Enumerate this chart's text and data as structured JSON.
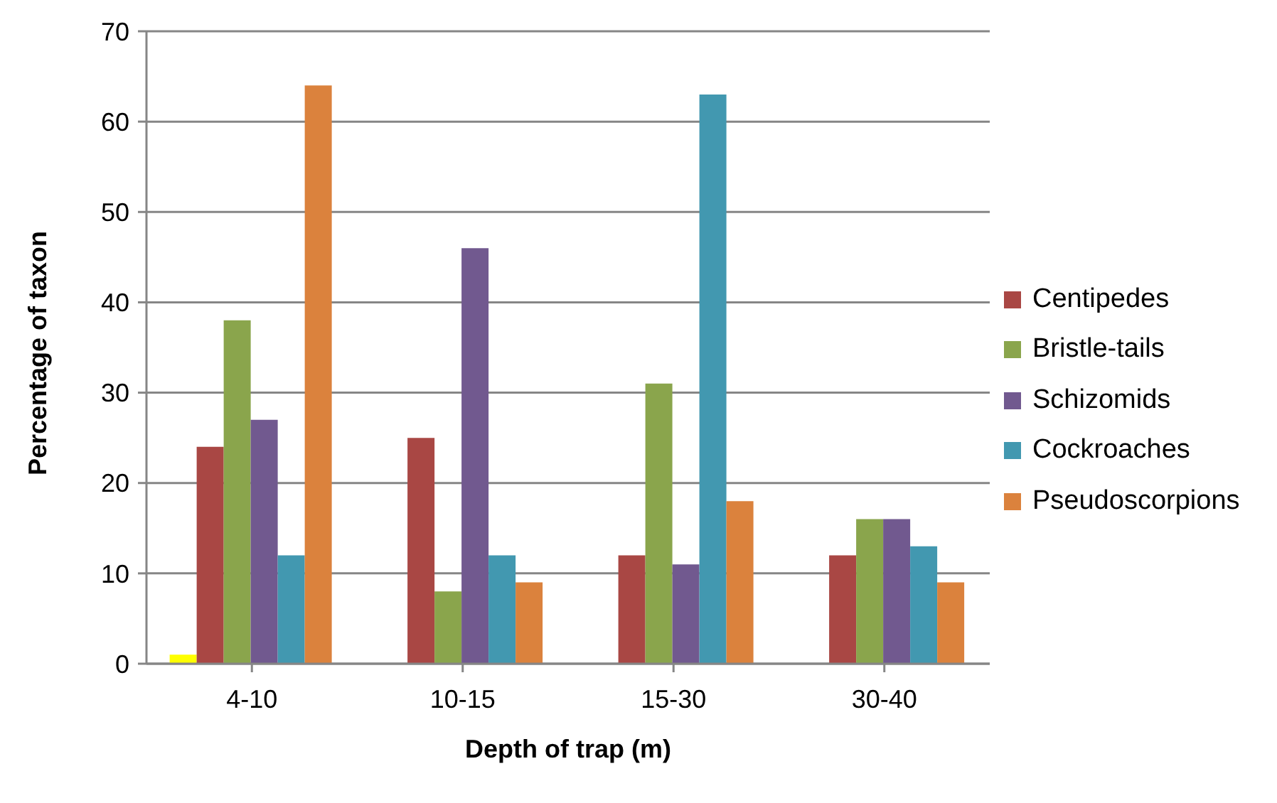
{
  "chart_data": {
    "type": "bar",
    "xlabel": "Depth of trap (m)",
    "ylabel": "Percentage of taxon",
    "categories": [
      "4-10",
      "10-15",
      "15-30",
      "30-40"
    ],
    "series": [
      {
        "color": "#ffff00",
        "values": [
          1,
          null,
          null,
          null
        ]
      },
      {
        "name": "Centipedes",
        "color": "#a94744",
        "values": [
          24,
          25,
          12,
          12
        ]
      },
      {
        "name": "Bristle-tails",
        "color": "#8aa54c",
        "values": [
          38,
          8,
          31,
          16
        ]
      },
      {
        "name": "Schizomids",
        "color": "#71598f",
        "values": [
          27,
          46,
          11,
          16
        ]
      },
      {
        "name": "Cockroaches",
        "color": "#4298b0",
        "values": [
          12,
          12,
          63,
          13
        ]
      },
      {
        "name": "Pseudoscorpions",
        "color": "#db823d",
        "values": [
          64,
          9,
          18,
          9
        ]
      }
    ],
    "ylim": [
      0,
      70
    ],
    "yticks": [
      0,
      10,
      20,
      30,
      40,
      50,
      60,
      70
    ],
    "grid": "y",
    "legend": "right"
  }
}
